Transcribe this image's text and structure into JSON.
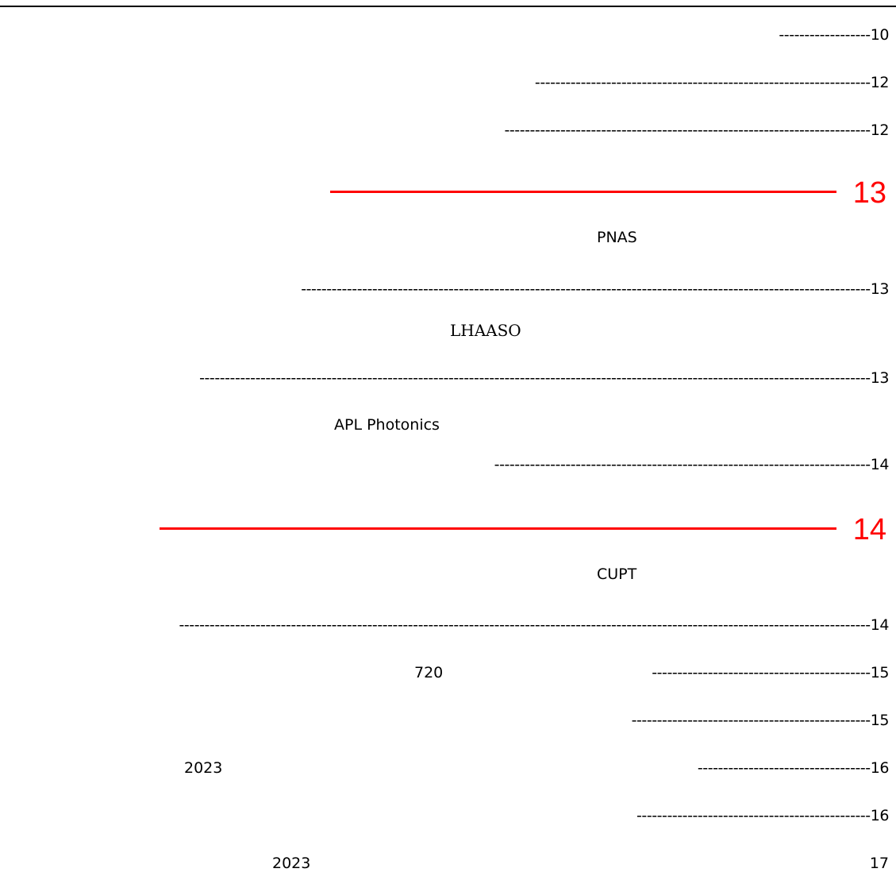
{
  "toc": {
    "e1": {
      "leader": "------------------",
      "page": "10"
    },
    "e2": {
      "leader": "------------------------------------------------------------------",
      "page": "12"
    },
    "e3": {
      "leader": "------------------------------------------------------------------------",
      "page": "12"
    },
    "e4": {
      "page": "13"
    },
    "e5": {
      "title": "PNAS",
      "leader": "----------------------------------------------------------------------------------------------------------------",
      "page": "13"
    },
    "e6": {
      "title": "LHAASO",
      "leader": "------------------------------------------------------------------------------------------------------------------------------------",
      "page": "13"
    },
    "e7": {
      "title": "APL Photonics",
      "leader": "--------------------------------------------------------------------------",
      "page": "14"
    },
    "e8": {
      "page": "14"
    },
    "e9": {
      "title": "CUPT",
      "leader": "----------------------------------------------------------------------------------------------------------------------------------------",
      "page": "14"
    },
    "e10": {
      "title": "720",
      "leader": "-------------------------------------------",
      "page": "15"
    },
    "e11": {
      "leader": "-----------------------------------------------",
      "page": "15"
    },
    "e12": {
      "title": "2023",
      "leader": "----------------------------------",
      "page": "16"
    },
    "e13": {
      "leader": "----------------------------------------------",
      "page": "16"
    },
    "e14": {
      "title": "2023",
      "page": "17"
    }
  },
  "colors": {
    "highlight": "#ff0000",
    "text": "#000000"
  }
}
